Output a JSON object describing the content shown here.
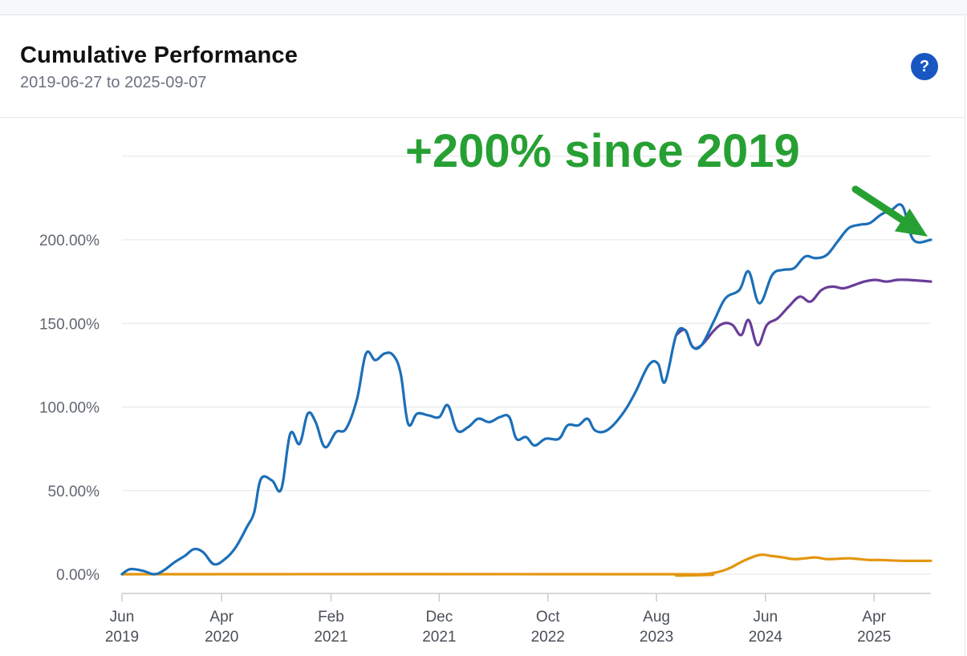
{
  "header": {
    "title": "Cumulative Performance",
    "subtitle": "2019-06-27 to 2025-09-07",
    "help_label": "?"
  },
  "colors": {
    "blue": "#1c6fb8",
    "purple": "#6a3d99",
    "orange": "#e3960f",
    "annotation": "#27a033",
    "grid": "#e4e6e9",
    "help": "#1857c2"
  },
  "chart_data": {
    "type": "line",
    "title": "",
    "xlabel": "",
    "ylabel": "",
    "ylim": [
      -10,
      215
    ],
    "xlim": [
      "2019-06-27",
      "2025-09-07"
    ],
    "y_ticks": [
      0,
      50,
      100,
      150,
      200
    ],
    "y_tick_labels": [
      "0.00%",
      "50.00%",
      "100.00%",
      "150.00%",
      "200.00%"
    ],
    "x_tick_dates": [
      "2019-06-27",
      "2020-04-01",
      "2021-02-01",
      "2021-12-01",
      "2022-10-01",
      "2023-08-01",
      "2024-06-01",
      "2025-04-01"
    ],
    "x_tick_labels": [
      [
        "Jun",
        "2019"
      ],
      [
        "Apr",
        "2020"
      ],
      [
        "Feb",
        "2021"
      ],
      [
        "Dec",
        "2021"
      ],
      [
        "Oct",
        "2022"
      ],
      [
        "Aug",
        "2023"
      ],
      [
        "Jun",
        "2024"
      ],
      [
        "Apr",
        "2025"
      ]
    ],
    "grid": true,
    "legend": "none",
    "annotation": {
      "text": "+200% since 2019",
      "points_to": [
        "2025-09-07",
        200
      ]
    },
    "series": [
      {
        "color": "#1c6fb8",
        "points": [
          [
            "2019-06-27",
            0
          ],
          [
            "2019-07-20",
            3
          ],
          [
            "2019-08-25",
            2
          ],
          [
            "2019-09-25",
            0
          ],
          [
            "2019-10-20",
            2
          ],
          [
            "2019-11-20",
            7
          ],
          [
            "2019-12-20",
            11
          ],
          [
            "2020-01-15",
            15
          ],
          [
            "2020-02-10",
            13
          ],
          [
            "2020-03-10",
            6
          ],
          [
            "2020-04-10",
            9
          ],
          [
            "2020-05-10",
            16
          ],
          [
            "2020-06-10",
            28
          ],
          [
            "2020-07-01",
            37
          ],
          [
            "2020-07-20",
            57
          ],
          [
            "2020-08-20",
            56
          ],
          [
            "2020-09-15",
            51
          ],
          [
            "2020-10-10",
            84
          ],
          [
            "2020-11-05",
            78
          ],
          [
            "2020-11-28",
            96
          ],
          [
            "2020-12-20",
            91
          ],
          [
            "2021-01-15",
            76
          ],
          [
            "2021-02-15",
            85
          ],
          [
            "2021-03-15",
            87
          ],
          [
            "2021-04-15",
            105
          ],
          [
            "2021-05-10",
            132
          ],
          [
            "2021-06-05",
            128
          ],
          [
            "2021-07-01",
            132
          ],
          [
            "2021-07-25",
            131
          ],
          [
            "2021-08-15",
            120
          ],
          [
            "2021-09-05",
            90
          ],
          [
            "2021-09-30",
            96
          ],
          [
            "2021-11-01",
            95
          ],
          [
            "2021-12-01",
            94
          ],
          [
            "2021-12-25",
            101
          ],
          [
            "2022-01-20",
            86
          ],
          [
            "2022-02-20",
            88
          ],
          [
            "2022-03-20",
            93
          ],
          [
            "2022-04-20",
            91
          ],
          [
            "2022-05-20",
            94
          ],
          [
            "2022-06-15",
            94
          ],
          [
            "2022-07-05",
            81
          ],
          [
            "2022-08-01",
            82
          ],
          [
            "2022-08-25",
            77
          ],
          [
            "2022-09-25",
            81
          ],
          [
            "2022-11-01",
            81
          ],
          [
            "2022-11-25",
            89
          ],
          [
            "2022-12-25",
            89
          ],
          [
            "2023-01-20",
            93
          ],
          [
            "2023-02-10",
            86
          ],
          [
            "2023-03-15",
            86
          ],
          [
            "2023-04-25",
            95
          ],
          [
            "2023-06-01",
            108
          ],
          [
            "2023-07-10",
            125
          ],
          [
            "2023-08-05",
            126
          ],
          [
            "2023-08-25",
            115
          ],
          [
            "2023-09-25",
            143
          ],
          [
            "2023-10-20",
            146
          ],
          [
            "2023-11-10",
            136
          ],
          [
            "2023-12-05",
            137
          ],
          [
            "2024-01-10",
            152
          ],
          [
            "2024-02-10",
            165
          ],
          [
            "2024-03-20",
            170
          ],
          [
            "2024-04-15",
            181
          ],
          [
            "2024-05-15",
            162
          ],
          [
            "2024-06-20",
            179
          ],
          [
            "2024-07-20",
            182
          ],
          [
            "2024-08-20",
            183
          ],
          [
            "2024-09-20",
            190
          ],
          [
            "2024-10-20",
            189
          ],
          [
            "2024-11-20",
            191
          ],
          [
            "2024-12-20",
            199
          ],
          [
            "2025-01-20",
            207
          ],
          [
            "2025-02-20",
            209
          ],
          [
            "2025-03-20",
            210
          ],
          [
            "2025-04-20",
            215
          ],
          [
            "2025-05-20",
            218
          ],
          [
            "2025-06-20",
            220
          ],
          [
            "2025-07-20",
            200
          ],
          [
            "2025-09-07",
            200
          ]
        ]
      },
      {
        "color": "#6a3d99",
        "points": [
          [
            "2023-09-25",
            143
          ],
          [
            "2023-10-20",
            146
          ],
          [
            "2023-11-10",
            136
          ],
          [
            "2023-12-05",
            137
          ],
          [
            "2024-01-10",
            146
          ],
          [
            "2024-02-05",
            150
          ],
          [
            "2024-03-01",
            149
          ],
          [
            "2024-03-25",
            143
          ],
          [
            "2024-04-15",
            152
          ],
          [
            "2024-05-10",
            137
          ],
          [
            "2024-06-05",
            149
          ],
          [
            "2024-07-05",
            153
          ],
          [
            "2024-08-05",
            160
          ],
          [
            "2024-09-05",
            166
          ],
          [
            "2024-10-05",
            163
          ],
          [
            "2024-11-05",
            170
          ],
          [
            "2024-12-05",
            172
          ],
          [
            "2025-01-05",
            171
          ],
          [
            "2025-02-05",
            173
          ],
          [
            "2025-03-05",
            175
          ],
          [
            "2025-04-05",
            176
          ],
          [
            "2025-05-05",
            175
          ],
          [
            "2025-06-05",
            176
          ],
          [
            "2025-07-05",
            176
          ],
          [
            "2025-09-07",
            175
          ]
        ]
      },
      {
        "color": "#e3960f",
        "points": [
          [
            "2019-06-27",
            0
          ],
          [
            "2023-09-01",
            0
          ],
          [
            "2023-09-25",
            -0.8
          ],
          [
            "2023-11-10",
            -0.3
          ],
          [
            "2024-01-01",
            0.5
          ],
          [
            "2024-02-15",
            3
          ],
          [
            "2024-04-01",
            8
          ],
          [
            "2024-05-15",
            11.5
          ],
          [
            "2024-06-15",
            11
          ],
          [
            "2024-07-20",
            10
          ],
          [
            "2024-08-20",
            9
          ],
          [
            "2024-09-20",
            9.5
          ],
          [
            "2024-10-20",
            10
          ],
          [
            "2024-11-20",
            9
          ],
          [
            "2024-12-20",
            9.2
          ],
          [
            "2025-01-20",
            9.5
          ],
          [
            "2025-02-20",
            9
          ],
          [
            "2025-03-20",
            8.5
          ],
          [
            "2025-04-20",
            8.5
          ],
          [
            "2025-06-20",
            8
          ],
          [
            "2025-09-07",
            8
          ]
        ]
      }
    ]
  }
}
